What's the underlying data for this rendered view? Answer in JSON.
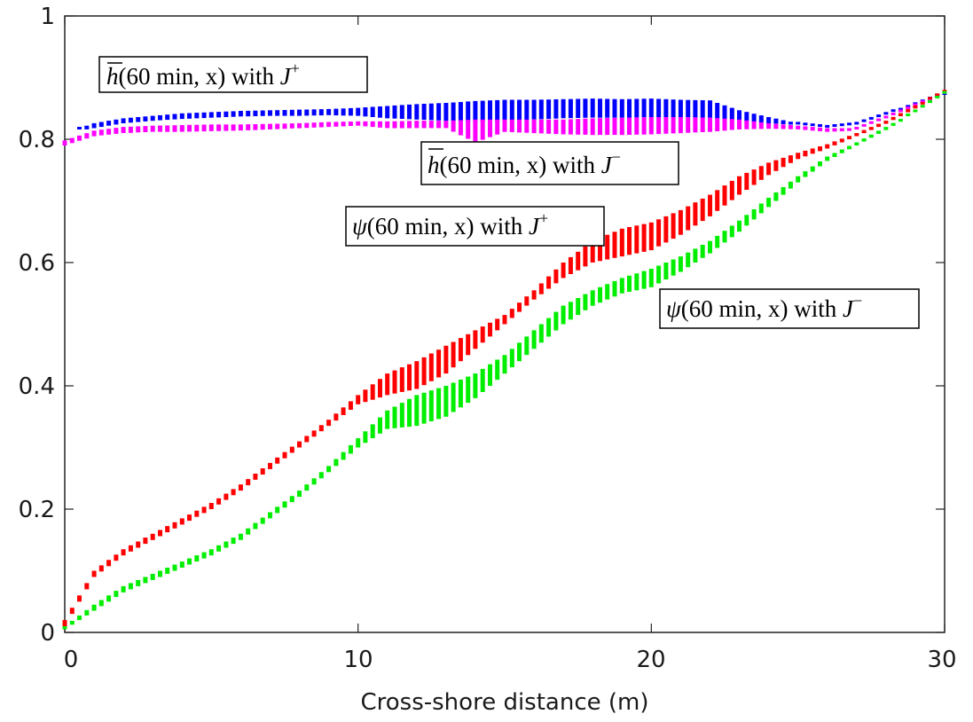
{
  "chart_data": {
    "type": "line",
    "title": "",
    "xlabel": "Cross-shore distance (m)",
    "ylabel": "",
    "xlim": [
      0,
      30
    ],
    "ylim": [
      0,
      1
    ],
    "x_ticks": [
      "0",
      "10",
      "20",
      "30"
    ],
    "y_ticks": [
      "0",
      "0.2",
      "0.4",
      "0.6",
      "0.8",
      "1"
    ],
    "grid": false,
    "series": [
      {
        "color": "#0000ff",
        "x": [
          0.5,
          1,
          2,
          3,
          4,
          5,
          6,
          7,
          8,
          9,
          10,
          11,
          12,
          13,
          14,
          15,
          16,
          17,
          18,
          19,
          20,
          21,
          22,
          23,
          24,
          25,
          26,
          27,
          28,
          29,
          30
        ],
        "low": [
          0.814,
          0.818,
          0.826,
          0.83,
          0.833,
          0.835,
          0.837,
          0.838,
          0.838,
          0.839,
          0.838,
          0.834,
          0.832,
          0.83,
          0.828,
          0.83,
          0.832,
          0.834,
          0.835,
          0.835,
          0.836,
          0.836,
          0.835,
          0.83,
          0.826,
          0.823,
          0.819,
          0.822,
          0.838,
          0.855,
          0.872
        ],
        "high": [
          0.818,
          0.826,
          0.834,
          0.838,
          0.842,
          0.844,
          0.846,
          0.847,
          0.848,
          0.849,
          0.851,
          0.854,
          0.857,
          0.859,
          0.862,
          0.864,
          0.864,
          0.865,
          0.866,
          0.865,
          0.866,
          0.864,
          0.863,
          0.847,
          0.836,
          0.826,
          0.821,
          0.826,
          0.842,
          0.86,
          0.878
        ]
      },
      {
        "color": "#ff00ff",
        "x": [
          0,
          1,
          2,
          3,
          4,
          5,
          6,
          7,
          8,
          9,
          10,
          11,
          12,
          13,
          14,
          15,
          16,
          17,
          18,
          19,
          20,
          21,
          22,
          23,
          24,
          25,
          26,
          27,
          28,
          29,
          30
        ],
        "low": [
          0.79,
          0.805,
          0.81,
          0.812,
          0.812,
          0.813,
          0.814,
          0.816,
          0.818,
          0.82,
          0.822,
          0.818,
          0.818,
          0.818,
          0.795,
          0.812,
          0.81,
          0.808,
          0.807,
          0.807,
          0.808,
          0.81,
          0.812,
          0.816,
          0.817,
          0.816,
          0.812,
          0.814,
          0.832,
          0.852,
          0.872
        ],
        "high": [
          0.798,
          0.814,
          0.82,
          0.822,
          0.823,
          0.824,
          0.824,
          0.825,
          0.826,
          0.828,
          0.829,
          0.829,
          0.83,
          0.83,
          0.832,
          0.832,
          0.832,
          0.832,
          0.834,
          0.835,
          0.836,
          0.836,
          0.835,
          0.832,
          0.826,
          0.822,
          0.818,
          0.818,
          0.836,
          0.856,
          0.876
        ]
      },
      {
        "color": "#ff0000",
        "x": [
          0,
          1,
          2,
          3,
          4,
          5,
          6,
          7,
          8,
          9,
          10,
          11,
          12,
          13,
          14,
          15,
          16,
          17,
          18,
          19,
          20,
          21,
          22,
          23,
          24,
          25,
          26,
          27,
          28,
          29,
          30
        ],
        "low": [
          0.01,
          0.09,
          0.125,
          0.15,
          0.175,
          0.2,
          0.23,
          0.265,
          0.3,
          0.335,
          0.37,
          0.385,
          0.395,
          0.42,
          0.46,
          0.5,
          0.54,
          0.575,
          0.6,
          0.61,
          0.62,
          0.645,
          0.675,
          0.71,
          0.742,
          0.768,
          0.785,
          0.805,
          0.825,
          0.85,
          0.875
        ],
        "high": [
          0.02,
          0.1,
          0.135,
          0.16,
          0.185,
          0.21,
          0.24,
          0.275,
          0.31,
          0.345,
          0.385,
          0.42,
          0.44,
          0.465,
          0.49,
          0.515,
          0.555,
          0.6,
          0.635,
          0.655,
          0.665,
          0.685,
          0.71,
          0.74,
          0.762,
          0.778,
          0.792,
          0.81,
          0.83,
          0.855,
          0.878
        ]
      },
      {
        "color": "#00ee00",
        "x": [
          0,
          1,
          2,
          3,
          4,
          5,
          6,
          7,
          8,
          9,
          10,
          11,
          12,
          13,
          14,
          15,
          16,
          17,
          18,
          19,
          20,
          21,
          22,
          23,
          24,
          25,
          26,
          27,
          28,
          29,
          30
        ],
        "low": [
          0.005,
          0.035,
          0.065,
          0.085,
          0.105,
          0.125,
          0.15,
          0.185,
          0.22,
          0.26,
          0.3,
          0.33,
          0.335,
          0.35,
          0.38,
          0.42,
          0.46,
          0.5,
          0.53,
          0.55,
          0.56,
          0.585,
          0.615,
          0.65,
          0.69,
          0.73,
          0.765,
          0.79,
          0.815,
          0.842,
          0.872
        ],
        "high": [
          0.01,
          0.045,
          0.075,
          0.095,
          0.115,
          0.135,
          0.16,
          0.195,
          0.23,
          0.27,
          0.315,
          0.36,
          0.385,
          0.4,
          0.42,
          0.45,
          0.49,
          0.53,
          0.555,
          0.575,
          0.59,
          0.61,
          0.635,
          0.668,
          0.705,
          0.74,
          0.772,
          0.795,
          0.82,
          0.846,
          0.876
        ]
      }
    ],
    "annotations": [
      {
        "base": "h",
        "overbar": true,
        "args": "(60 min, x) with ",
        "sym": "J",
        "sup": "+"
      },
      {
        "base": "h",
        "overbar": true,
        "args": "(60 min, x) with ",
        "sym": "J",
        "sup": "−"
      },
      {
        "base": "ψ",
        "overbar": false,
        "args": "(60 min, x) with ",
        "sym": "J",
        "sup": "+"
      },
      {
        "base": "ψ",
        "overbar": false,
        "args": "(60 min, x) with ",
        "sym": "J",
        "sup": "−"
      }
    ]
  }
}
